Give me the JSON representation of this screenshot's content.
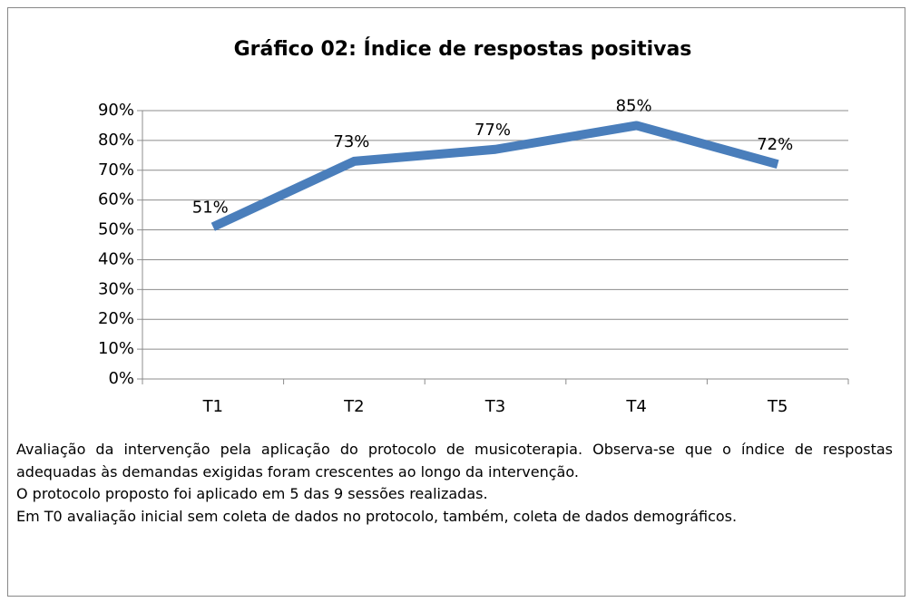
{
  "chart_data": {
    "type": "line",
    "title": "Gráfico 02: Índice de respostas positivas",
    "categories": [
      "T1",
      "T2",
      "T3",
      "T4",
      "T5"
    ],
    "values": [
      51,
      73,
      77,
      85,
      72
    ],
    "value_labels": [
      "51%",
      "73%",
      "77%",
      "85%",
      "72%"
    ],
    "color": "#4a7ebb",
    "ylim": [
      0,
      90
    ],
    "yticks": [
      {
        "value": 0,
        "label": "0%"
      },
      {
        "value": 10,
        "label": "10%"
      },
      {
        "value": 20,
        "label": "20%"
      },
      {
        "value": 30,
        "label": "30%"
      },
      {
        "value": 40,
        "label": "40%"
      },
      {
        "value": 50,
        "label": "50%"
      },
      {
        "value": 60,
        "label": "60%"
      },
      {
        "value": 70,
        "label": "70%"
      },
      {
        "value": 80,
        "label": "80%"
      },
      {
        "value": 90,
        "label": "90%"
      }
    ],
    "grid": true,
    "notes": [
      "Avaliação da intervenção pela aplicação do protocolo de musicoterapia. Observa-se que o índice de respostas adequadas às demandas exigidas foram crescentes ao longo da intervenção.",
      "O protocolo proposto foi aplicado em 5 das 9 sessões realizadas.",
      "Em T0 avaliação inicial sem coleta de dados no protocolo, também, coleta de dados demográficos."
    ]
  }
}
